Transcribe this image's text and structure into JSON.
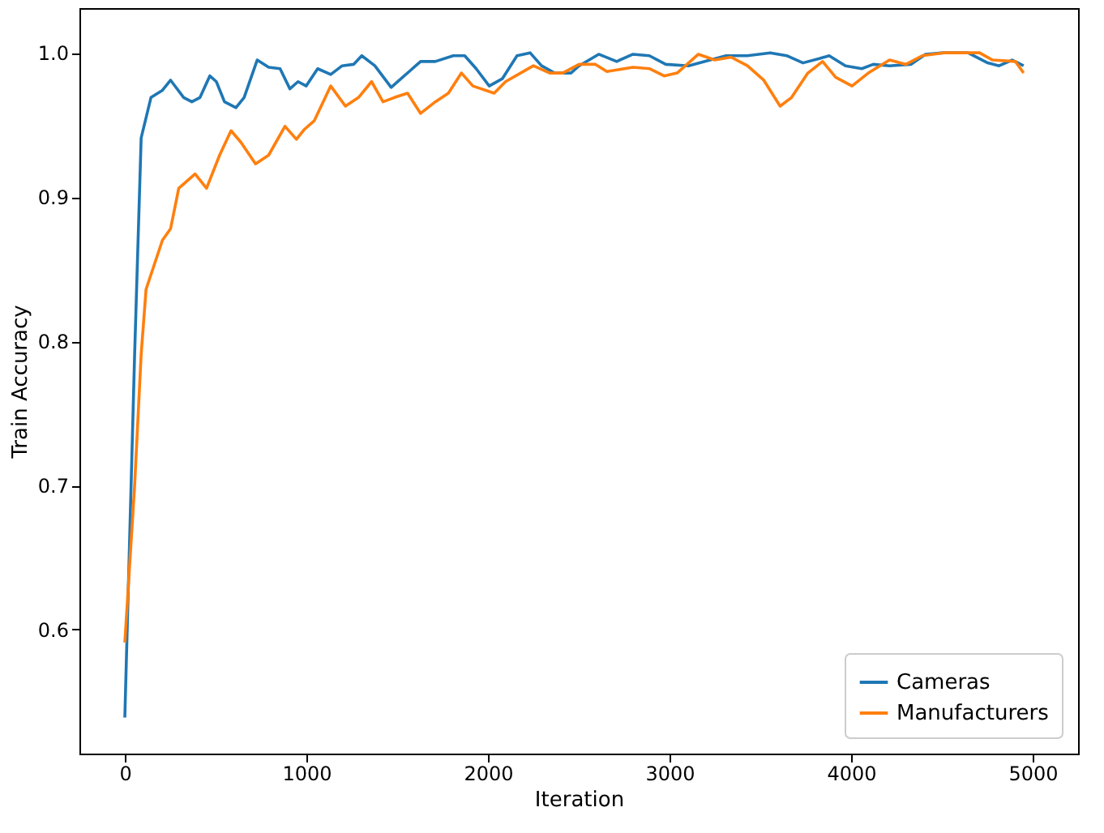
{
  "chart_data": {
    "type": "line",
    "xlabel": "Iteration",
    "ylabel": "Train Accuracy",
    "xlim": [
      -250,
      5250
    ],
    "ylim": [
      0.514,
      1.031
    ],
    "xticks": [
      0,
      1000,
      2000,
      3000,
      4000,
      5000
    ],
    "yticks": [
      0.6,
      0.7,
      0.8,
      0.9,
      {
        "value": 1.0,
        "label": "1.0"
      }
    ],
    "grid": false,
    "legend": "bottom right",
    "line_style": "solid",
    "marker": "none",
    "series": [
      {
        "name": "Cameras",
        "color": "#1f77b4",
        "x": [
          0,
          54,
          90,
          144,
          207,
          252,
          324,
          369,
          414,
          468,
          504,
          549,
          612,
          657,
          729,
          792,
          855,
          909,
          954,
          999,
          1062,
          1134,
          1197,
          1260,
          1305,
          1377,
          1467,
          1512,
          1575,
          1629,
          1710,
          1809,
          1872,
          1935,
          2007,
          2079,
          2160,
          2232,
          2295,
          2367,
          2457,
          2502,
          2610,
          2709,
          2799,
          2889,
          2979,
          3105,
          3195,
          3312,
          3429,
          3555,
          3645,
          3735,
          3825,
          3879,
          3969,
          4059,
          4122,
          4212,
          4329,
          4410,
          4509,
          4644,
          4752,
          4815,
          4887,
          4950
        ],
        "values": [
          0.539,
          0.791,
          0.941,
          0.969,
          0.974,
          0.981,
          0.969,
          0.966,
          0.969,
          0.984,
          0.98,
          0.966,
          0.962,
          0.969,
          0.995,
          0.99,
          0.989,
          0.975,
          0.98,
          0.977,
          0.989,
          0.985,
          0.991,
          0.992,
          0.998,
          0.991,
          0.976,
          0.981,
          0.988,
          0.994,
          0.994,
          0.998,
          0.998,
          0.989,
          0.977,
          0.982,
          0.998,
          1.0,
          0.991,
          0.986,
          0.986,
          0.991,
          0.999,
          0.994,
          0.999,
          0.998,
          0.992,
          0.991,
          0.994,
          0.998,
          0.998,
          1.0,
          0.998,
          0.993,
          0.996,
          0.998,
          0.991,
          0.989,
          0.992,
          0.991,
          0.992,
          0.999,
          1.0,
          1.0,
          0.993,
          0.991,
          0.995,
          0.991
        ]
      },
      {
        "name": "Manufacturers",
        "color": "#ff7f0e",
        "x": [
          0,
          54,
          90,
          117,
          207,
          252,
          297,
          387,
          450,
          522,
          585,
          639,
          720,
          792,
          882,
          945,
          990,
          1044,
          1134,
          1215,
          1287,
          1359,
          1422,
          1485,
          1557,
          1629,
          1710,
          1782,
          1854,
          1917,
          2034,
          2097,
          2250,
          2340,
          2412,
          2502,
          2592,
          2655,
          2799,
          2889,
          2970,
          3042,
          3159,
          3249,
          3339,
          3429,
          3519,
          3609,
          3672,
          3762,
          3843,
          3915,
          4005,
          4095,
          4212,
          4302,
          4392,
          4509,
          4707,
          4779,
          4905,
          4950
        ],
        "values": [
          0.591,
          0.7,
          0.791,
          0.836,
          0.87,
          0.878,
          0.906,
          0.916,
          0.906,
          0.929,
          0.946,
          0.938,
          0.923,
          0.929,
          0.949,
          0.94,
          0.947,
          0.953,
          0.977,
          0.963,
          0.969,
          0.98,
          0.966,
          0.969,
          0.972,
          0.958,
          0.966,
          0.972,
          0.986,
          0.977,
          0.972,
          0.98,
          0.991,
          0.986,
          0.986,
          0.992,
          0.992,
          0.987,
          0.99,
          0.989,
          0.984,
          0.986,
          0.999,
          0.995,
          0.997,
          0.991,
          0.981,
          0.963,
          0.969,
          0.986,
          0.994,
          0.983,
          0.977,
          0.986,
          0.995,
          0.992,
          0.998,
          1.0,
          1.0,
          0.995,
          0.994,
          0.986
        ]
      }
    ]
  }
}
